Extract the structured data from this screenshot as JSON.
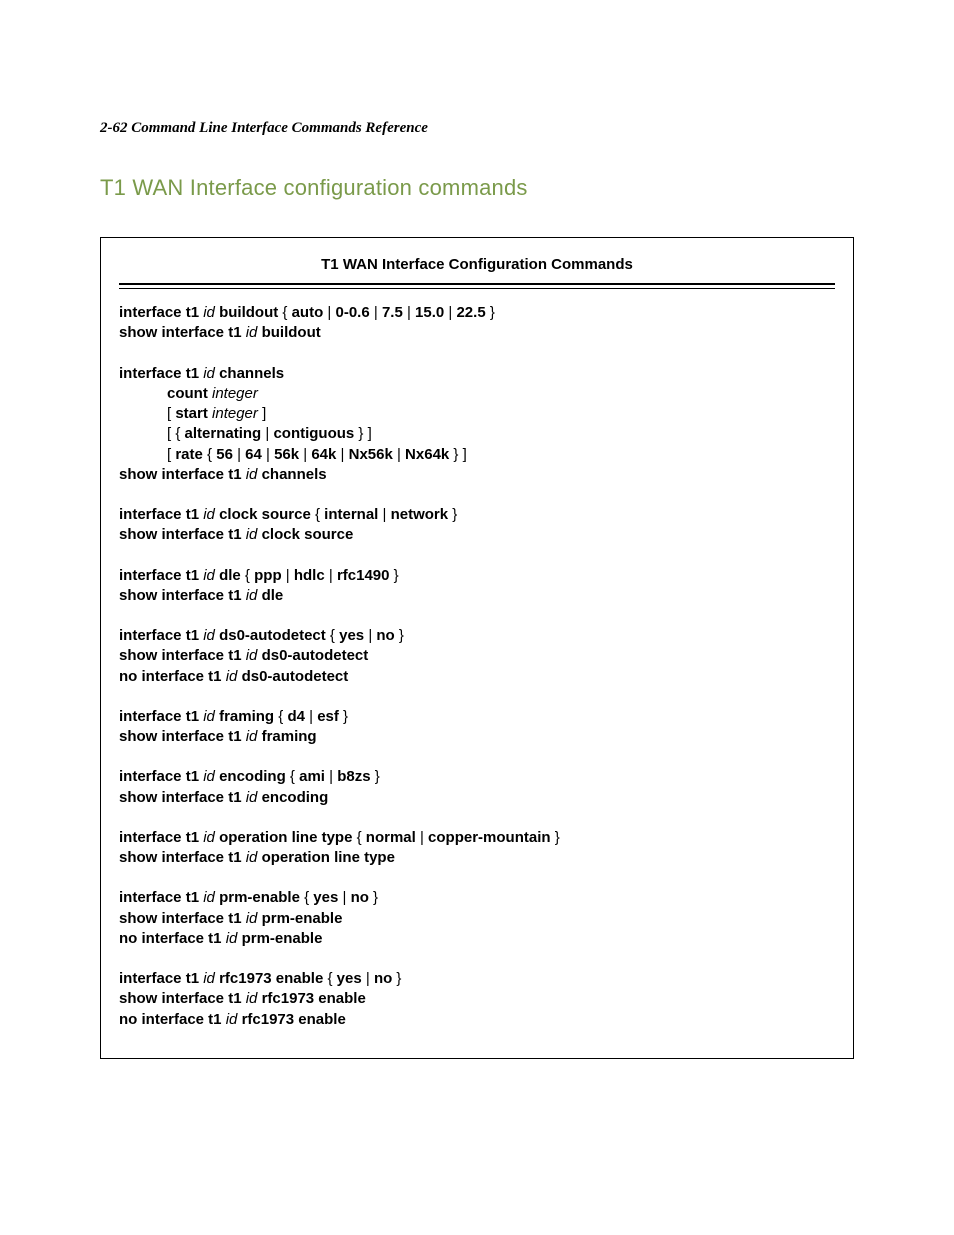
{
  "header": "2-62  Command Line Interface Commands Reference",
  "section_title": "T1 WAN Interface configuration commands",
  "box": {
    "title": "T1 WAN Interface Configuration Commands",
    "groups": [
      {
        "lines": [
          [
            {
              "t": "interface t1",
              "c": "b"
            },
            {
              "t": " "
            },
            {
              "t": "id",
              "c": "i"
            },
            {
              "t": " "
            },
            {
              "t": "buildout",
              "c": "b"
            },
            {
              "t": " { "
            },
            {
              "t": "auto",
              "c": "b"
            },
            {
              "t": " | "
            },
            {
              "t": "0-0.6",
              "c": "b"
            },
            {
              "t": " | "
            },
            {
              "t": "7.5",
              "c": "b"
            },
            {
              "t": " | "
            },
            {
              "t": "15.0",
              "c": "b"
            },
            {
              "t": " | "
            },
            {
              "t": "22.5",
              "c": "b"
            },
            {
              "t": " }"
            }
          ],
          [
            {
              "t": "show interface t1",
              "c": "b"
            },
            {
              "t": " "
            },
            {
              "t": "id",
              "c": "i"
            },
            {
              "t": " "
            },
            {
              "t": "buildout",
              "c": "b"
            }
          ]
        ]
      },
      {
        "lines": [
          [
            {
              "t": "interface t1",
              "c": "b"
            },
            {
              "t": " "
            },
            {
              "t": "id",
              "c": "i"
            },
            {
              "t": " "
            },
            {
              "t": "channels",
              "c": "b"
            }
          ],
          [
            {
              "t": "",
              "indent": 1
            },
            {
              "t": "count",
              "c": "b"
            },
            {
              "t": " "
            },
            {
              "t": "integer",
              "c": "i"
            }
          ],
          [
            {
              "t": "",
              "indent": 1
            },
            {
              "t": "[ "
            },
            {
              "t": "start",
              "c": "b"
            },
            {
              "t": " "
            },
            {
              "t": "integer",
              "c": "i"
            },
            {
              "t": " ]"
            }
          ],
          [
            {
              "t": "",
              "indent": 1
            },
            {
              "t": "[ { "
            },
            {
              "t": "alternating",
              "c": "b"
            },
            {
              "t": " | "
            },
            {
              "t": "contiguous",
              "c": "b"
            },
            {
              "t": " } ]"
            }
          ],
          [
            {
              "t": "",
              "indent": 1
            },
            {
              "t": "[ "
            },
            {
              "t": "rate",
              "c": "b"
            },
            {
              "t": " { "
            },
            {
              "t": "56",
              "c": "b"
            },
            {
              "t": " | "
            },
            {
              "t": "64",
              "c": "b"
            },
            {
              "t": " | "
            },
            {
              "t": "56k",
              "c": "b"
            },
            {
              "t": " | "
            },
            {
              "t": "64k",
              "c": "b"
            },
            {
              "t": " | "
            },
            {
              "t": "Nx56k",
              "c": "b"
            },
            {
              "t": " | "
            },
            {
              "t": "Nx64k",
              "c": "b"
            },
            {
              "t": " } ]"
            }
          ],
          [
            {
              "t": "show interface t1",
              "c": "b"
            },
            {
              "t": " "
            },
            {
              "t": "id",
              "c": "i"
            },
            {
              "t": " "
            },
            {
              "t": "channels",
              "c": "b"
            }
          ]
        ]
      },
      {
        "lines": [
          [
            {
              "t": "interface t1",
              "c": "b"
            },
            {
              "t": " "
            },
            {
              "t": "id",
              "c": "i"
            },
            {
              "t": " "
            },
            {
              "t": "clock source",
              "c": "b"
            },
            {
              "t": " { "
            },
            {
              "t": "internal",
              "c": "b"
            },
            {
              "t": " | "
            },
            {
              "t": "network",
              "c": "b"
            },
            {
              "t": " }"
            }
          ],
          [
            {
              "t": "show interface t1",
              "c": "b"
            },
            {
              "t": " "
            },
            {
              "t": "id",
              "c": "i"
            },
            {
              "t": " "
            },
            {
              "t": "clock source",
              "c": "b"
            }
          ]
        ]
      },
      {
        "lines": [
          [
            {
              "t": "interface t1",
              "c": "b"
            },
            {
              "t": " "
            },
            {
              "t": "id",
              "c": "i"
            },
            {
              "t": " "
            },
            {
              "t": "dle",
              "c": "b"
            },
            {
              "t": " { "
            },
            {
              "t": "ppp",
              "c": "b"
            },
            {
              "t": " | "
            },
            {
              "t": "hdlc",
              "c": "b"
            },
            {
              "t": " | "
            },
            {
              "t": "rfc1490",
              "c": "b"
            },
            {
              "t": " }"
            }
          ],
          [
            {
              "t": "show interface t1",
              "c": "b"
            },
            {
              "t": " "
            },
            {
              "t": "id",
              "c": "i"
            },
            {
              "t": " "
            },
            {
              "t": "dle",
              "c": "b"
            }
          ]
        ]
      },
      {
        "lines": [
          [
            {
              "t": "interface t1",
              "c": "b"
            },
            {
              "t": " "
            },
            {
              "t": "id",
              "c": "i"
            },
            {
              "t": " "
            },
            {
              "t": "ds0-autodetect",
              "c": "b"
            },
            {
              "t": " { "
            },
            {
              "t": "yes",
              "c": "b"
            },
            {
              "t": " | "
            },
            {
              "t": "no",
              "c": "b"
            },
            {
              "t": " }"
            }
          ],
          [
            {
              "t": "show interface t1",
              "c": "b"
            },
            {
              "t": " "
            },
            {
              "t": "id",
              "c": "i"
            },
            {
              "t": " "
            },
            {
              "t": "ds0-autodetect",
              "c": "b"
            }
          ],
          [
            {
              "t": "no interface t1",
              "c": "b"
            },
            {
              "t": " "
            },
            {
              "t": "id",
              "c": "i"
            },
            {
              "t": " "
            },
            {
              "t": "ds0-autodetect",
              "c": "b"
            }
          ]
        ]
      },
      {
        "lines": [
          [
            {
              "t": "interface t1",
              "c": "b"
            },
            {
              "t": " "
            },
            {
              "t": "id",
              "c": "i"
            },
            {
              "t": " "
            },
            {
              "t": "framing",
              "c": "b"
            },
            {
              "t": " { "
            },
            {
              "t": "d4",
              "c": "b"
            },
            {
              "t": " | "
            },
            {
              "t": "esf",
              "c": "b"
            },
            {
              "t": " }"
            }
          ],
          [
            {
              "t": "show interface t1",
              "c": "b"
            },
            {
              "t": " "
            },
            {
              "t": "id",
              "c": "i"
            },
            {
              "t": " "
            },
            {
              "t": "framing",
              "c": "b"
            }
          ]
        ]
      },
      {
        "lines": [
          [
            {
              "t": "interface t1",
              "c": "b"
            },
            {
              "t": " "
            },
            {
              "t": "id",
              "c": "i"
            },
            {
              "t": " "
            },
            {
              "t": "encoding",
              "c": "b"
            },
            {
              "t": " { "
            },
            {
              "t": "ami",
              "c": "b"
            },
            {
              "t": " | "
            },
            {
              "t": "b8zs",
              "c": "b"
            },
            {
              "t": " }"
            }
          ],
          [
            {
              "t": "show interface t1",
              "c": "b"
            },
            {
              "t": " "
            },
            {
              "t": "id",
              "c": "i"
            },
            {
              "t": " "
            },
            {
              "t": "encoding",
              "c": "b"
            }
          ]
        ]
      },
      {
        "lines": [
          [
            {
              "t": "interface t1",
              "c": "b"
            },
            {
              "t": " "
            },
            {
              "t": "id",
              "c": "i"
            },
            {
              "t": " "
            },
            {
              "t": "operation line type",
              "c": "b"
            },
            {
              "t": " { "
            },
            {
              "t": "normal",
              "c": "b"
            },
            {
              "t": " | "
            },
            {
              "t": "copper-mountain",
              "c": "b"
            },
            {
              "t": " }"
            }
          ],
          [
            {
              "t": "show interface t1",
              "c": "b"
            },
            {
              "t": " "
            },
            {
              "t": "id",
              "c": "i"
            },
            {
              "t": " "
            },
            {
              "t": "operation line type",
              "c": "b"
            }
          ]
        ]
      },
      {
        "lines": [
          [
            {
              "t": "interface t1",
              "c": "b"
            },
            {
              "t": " "
            },
            {
              "t": "id",
              "c": "i"
            },
            {
              "t": " "
            },
            {
              "t": "prm-enable",
              "c": "b"
            },
            {
              "t": " { "
            },
            {
              "t": "yes",
              "c": "b"
            },
            {
              "t": " | "
            },
            {
              "t": "no",
              "c": "b"
            },
            {
              "t": " }"
            }
          ],
          [
            {
              "t": "show interface t1",
              "c": "b"
            },
            {
              "t": " "
            },
            {
              "t": "id",
              "c": "i"
            },
            {
              "t": " "
            },
            {
              "t": "prm-enable",
              "c": "b"
            }
          ],
          [
            {
              "t": "no interface t1",
              "c": "b"
            },
            {
              "t": " "
            },
            {
              "t": "id",
              "c": "i"
            },
            {
              "t": " "
            },
            {
              "t": "prm-enable",
              "c": "b"
            }
          ]
        ]
      },
      {
        "lines": [
          [
            {
              "t": "interface t1",
              "c": "b"
            },
            {
              "t": " "
            },
            {
              "t": "id",
              "c": "i"
            },
            {
              "t": " "
            },
            {
              "t": "rfc1973 enable",
              "c": "b"
            },
            {
              "t": " { "
            },
            {
              "t": "yes",
              "c": "b"
            },
            {
              "t": " | "
            },
            {
              "t": "no",
              "c": "b"
            },
            {
              "t": " }"
            }
          ],
          [
            {
              "t": "show interface t1",
              "c": "b"
            },
            {
              "t": " "
            },
            {
              "t": "id",
              "c": "i"
            },
            {
              "t": " "
            },
            {
              "t": "rfc1973 enable",
              "c": "b"
            }
          ],
          [
            {
              "t": "no interface t1",
              "c": "b"
            },
            {
              "t": " "
            },
            {
              "t": "id",
              "c": "i"
            },
            {
              "t": " "
            },
            {
              "t": "rfc1973 enable",
              "c": "b"
            }
          ]
        ]
      }
    ]
  },
  "colors": {
    "background": "#ffffff",
    "text": "#000000",
    "section_title": "#7a9a4a",
    "border": "#000000"
  },
  "typography": {
    "header_font": "Georgia/serif italic bold",
    "section_title_font": "Arial 22px",
    "body_font": "Arial 15px"
  }
}
